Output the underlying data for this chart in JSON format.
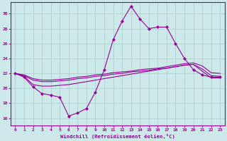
{
  "background_color": "#cce8e8",
  "grid_color": "#aacccc",
  "line_color": "#990099",
  "xlabel": "Windchill (Refroidissement éolien,°C)",
  "xlim": [
    -0.5,
    23.5
  ],
  "ylim": [
    15.0,
    31.5
  ],
  "yticks": [
    16,
    18,
    20,
    22,
    24,
    26,
    28,
    30
  ],
  "xticks": [
    0,
    1,
    2,
    3,
    4,
    5,
    6,
    7,
    8,
    9,
    10,
    11,
    12,
    13,
    14,
    15,
    16,
    17,
    18,
    19,
    20,
    21,
    22,
    23
  ],
  "series1_x": [
    0,
    1,
    2,
    3,
    4,
    5,
    6,
    7,
    8,
    9,
    10,
    11,
    12,
    13,
    14,
    15,
    16,
    17,
    18,
    19,
    20,
    21,
    22,
    23
  ],
  "series1_y": [
    22.0,
    21.5,
    20.2,
    19.3,
    19.1,
    18.8,
    16.3,
    16.7,
    17.3,
    19.5,
    22.5,
    26.5,
    29.0,
    31.0,
    29.3,
    28.0,
    28.2,
    28.2,
    26.0,
    24.0,
    22.5,
    21.8,
    21.5,
    21.5
  ],
  "series2_x": [
    0,
    1,
    2,
    3,
    4,
    5,
    6,
    7,
    8,
    9,
    10,
    11,
    12,
    13,
    14,
    15,
    16,
    17,
    18,
    19,
    20,
    21,
    22,
    23
  ],
  "series2_y": [
    22.0,
    21.6,
    20.5,
    20.3,
    20.3,
    20.4,
    20.5,
    20.7,
    20.9,
    21.1,
    21.3,
    21.5,
    21.7,
    21.9,
    22.1,
    22.3,
    22.5,
    22.7,
    22.9,
    23.1,
    23.2,
    22.3,
    21.4,
    21.4
  ],
  "series3_x": [
    0,
    1,
    2,
    3,
    4,
    5,
    6,
    7,
    8,
    9,
    10,
    11,
    12,
    13,
    14,
    15,
    16,
    17,
    18,
    19,
    20,
    21,
    22,
    23
  ],
  "series3_y": [
    22.0,
    21.7,
    21.1,
    20.9,
    20.9,
    21.0,
    21.1,
    21.3,
    21.4,
    21.6,
    21.7,
    21.9,
    22.0,
    22.2,
    22.3,
    22.4,
    22.6,
    22.7,
    22.9,
    23.1,
    23.2,
    22.6,
    21.7,
    21.6
  ],
  "series4_x": [
    0,
    1,
    2,
    3,
    4,
    5,
    6,
    7,
    8,
    9,
    10,
    11,
    12,
    13,
    14,
    15,
    16,
    17,
    18,
    19,
    20,
    21,
    22,
    23
  ],
  "series4_y": [
    22.0,
    21.8,
    21.3,
    21.1,
    21.1,
    21.2,
    21.3,
    21.5,
    21.6,
    21.8,
    21.9,
    22.1,
    22.2,
    22.3,
    22.5,
    22.6,
    22.7,
    22.9,
    23.1,
    23.3,
    23.4,
    23.0,
    22.1,
    22.0
  ]
}
